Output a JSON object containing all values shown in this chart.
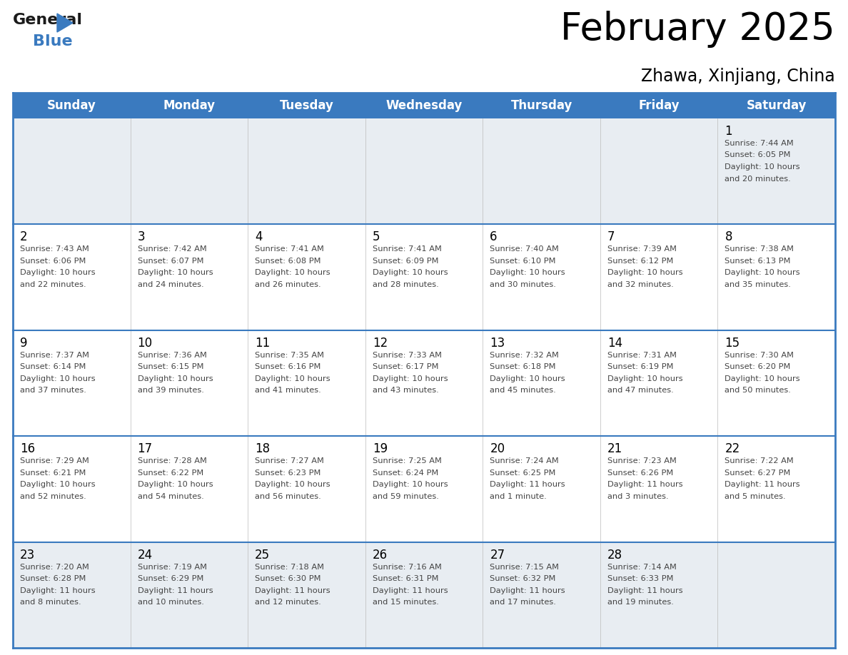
{
  "title": "February 2025",
  "subtitle": "Zhawa, Xinjiang, China",
  "days_of_week": [
    "Sunday",
    "Monday",
    "Tuesday",
    "Wednesday",
    "Thursday",
    "Friday",
    "Saturday"
  ],
  "header_bg_color": "#3a7abf",
  "header_text_color": "#ffffff",
  "row1_bg_color": "#e8edf2",
  "cell_bg_white": "#ffffff",
  "cell_bg_gray": "#f0f4f8",
  "border_color": "#3a7abf",
  "day_number_color": "#000000",
  "text_color": "#444444",
  "title_color": "#000000",
  "subtitle_color": "#000000",
  "logo_general_color": "#1a1a1a",
  "logo_blue_color": "#3a7abf",
  "calendar": [
    [
      null,
      null,
      null,
      null,
      null,
      null,
      {
        "day": 1,
        "sunrise": "7:44 AM",
        "sunset": "6:05 PM",
        "daylight": "10 hours and 20 minutes."
      }
    ],
    [
      {
        "day": 2,
        "sunrise": "7:43 AM",
        "sunset": "6:06 PM",
        "daylight": "10 hours and 22 minutes."
      },
      {
        "day": 3,
        "sunrise": "7:42 AM",
        "sunset": "6:07 PM",
        "daylight": "10 hours and 24 minutes."
      },
      {
        "day": 4,
        "sunrise": "7:41 AM",
        "sunset": "6:08 PM",
        "daylight": "10 hours and 26 minutes."
      },
      {
        "day": 5,
        "sunrise": "7:41 AM",
        "sunset": "6:09 PM",
        "daylight": "10 hours and 28 minutes."
      },
      {
        "day": 6,
        "sunrise": "7:40 AM",
        "sunset": "6:10 PM",
        "daylight": "10 hours and 30 minutes."
      },
      {
        "day": 7,
        "sunrise": "7:39 AM",
        "sunset": "6:12 PM",
        "daylight": "10 hours and 32 minutes."
      },
      {
        "day": 8,
        "sunrise": "7:38 AM",
        "sunset": "6:13 PM",
        "daylight": "10 hours and 35 minutes."
      }
    ],
    [
      {
        "day": 9,
        "sunrise": "7:37 AM",
        "sunset": "6:14 PM",
        "daylight": "10 hours and 37 minutes."
      },
      {
        "day": 10,
        "sunrise": "7:36 AM",
        "sunset": "6:15 PM",
        "daylight": "10 hours and 39 minutes."
      },
      {
        "day": 11,
        "sunrise": "7:35 AM",
        "sunset": "6:16 PM",
        "daylight": "10 hours and 41 minutes."
      },
      {
        "day": 12,
        "sunrise": "7:33 AM",
        "sunset": "6:17 PM",
        "daylight": "10 hours and 43 minutes."
      },
      {
        "day": 13,
        "sunrise": "7:32 AM",
        "sunset": "6:18 PM",
        "daylight": "10 hours and 45 minutes."
      },
      {
        "day": 14,
        "sunrise": "7:31 AM",
        "sunset": "6:19 PM",
        "daylight": "10 hours and 47 minutes."
      },
      {
        "day": 15,
        "sunrise": "7:30 AM",
        "sunset": "6:20 PM",
        "daylight": "10 hours and 50 minutes."
      }
    ],
    [
      {
        "day": 16,
        "sunrise": "7:29 AM",
        "sunset": "6:21 PM",
        "daylight": "10 hours and 52 minutes."
      },
      {
        "day": 17,
        "sunrise": "7:28 AM",
        "sunset": "6:22 PM",
        "daylight": "10 hours and 54 minutes."
      },
      {
        "day": 18,
        "sunrise": "7:27 AM",
        "sunset": "6:23 PM",
        "daylight": "10 hours and 56 minutes."
      },
      {
        "day": 19,
        "sunrise": "7:25 AM",
        "sunset": "6:24 PM",
        "daylight": "10 hours and 59 minutes."
      },
      {
        "day": 20,
        "sunrise": "7:24 AM",
        "sunset": "6:25 PM",
        "daylight": "11 hours and 1 minute."
      },
      {
        "day": 21,
        "sunrise": "7:23 AM",
        "sunset": "6:26 PM",
        "daylight": "11 hours and 3 minutes."
      },
      {
        "day": 22,
        "sunrise": "7:22 AM",
        "sunset": "6:27 PM",
        "daylight": "11 hours and 5 minutes."
      }
    ],
    [
      {
        "day": 23,
        "sunrise": "7:20 AM",
        "sunset": "6:28 PM",
        "daylight": "11 hours and 8 minutes."
      },
      {
        "day": 24,
        "sunrise": "7:19 AM",
        "sunset": "6:29 PM",
        "daylight": "11 hours and 10 minutes."
      },
      {
        "day": 25,
        "sunrise": "7:18 AM",
        "sunset": "6:30 PM",
        "daylight": "11 hours and 12 minutes."
      },
      {
        "day": 26,
        "sunrise": "7:16 AM",
        "sunset": "6:31 PM",
        "daylight": "11 hours and 15 minutes."
      },
      {
        "day": 27,
        "sunrise": "7:15 AM",
        "sunset": "6:32 PM",
        "daylight": "11 hours and 17 minutes."
      },
      {
        "day": 28,
        "sunrise": "7:14 AM",
        "sunset": "6:33 PM",
        "daylight": "11 hours and 19 minutes."
      },
      null
    ]
  ]
}
